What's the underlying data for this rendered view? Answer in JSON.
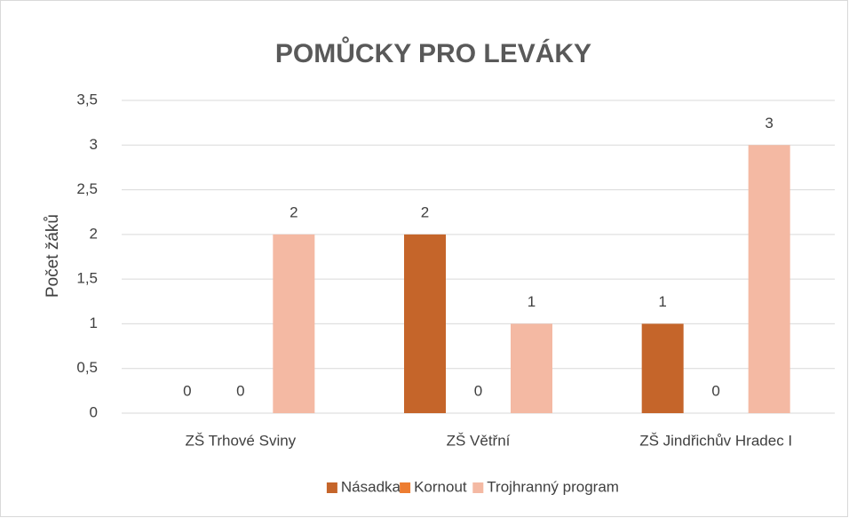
{
  "chart_data": {
    "type": "bar",
    "title": "POMŮCKY PRO LEVÁKY",
    "y_label": "Počet žáků",
    "categories": [
      "ZŠ Trhové Sviny",
      "ZŠ Větřní",
      "ZŠ Jindřichův Hradec I"
    ],
    "series": [
      {
        "name": "Násadka",
        "color": "#c5652a",
        "values": [
          0,
          2,
          1
        ]
      },
      {
        "name": "Kornout",
        "color": "#ed7d31",
        "values": [
          0,
          0,
          0
        ]
      },
      {
        "name": "Trojhranný program",
        "color": "#f4b9a3",
        "values": [
          2,
          1,
          3
        ]
      }
    ],
    "ylim": [
      0,
      3.5
    ],
    "yticks": [
      0,
      {
        "value": 0.5,
        "label": "0,5"
      },
      1,
      {
        "value": 1.5,
        "label": "1,5"
      },
      2,
      {
        "value": 2.5,
        "label": "2,5"
      },
      3,
      {
        "value": 3.5,
        "label": "3,5"
      }
    ],
    "grid": true,
    "legend": "bottom"
  }
}
